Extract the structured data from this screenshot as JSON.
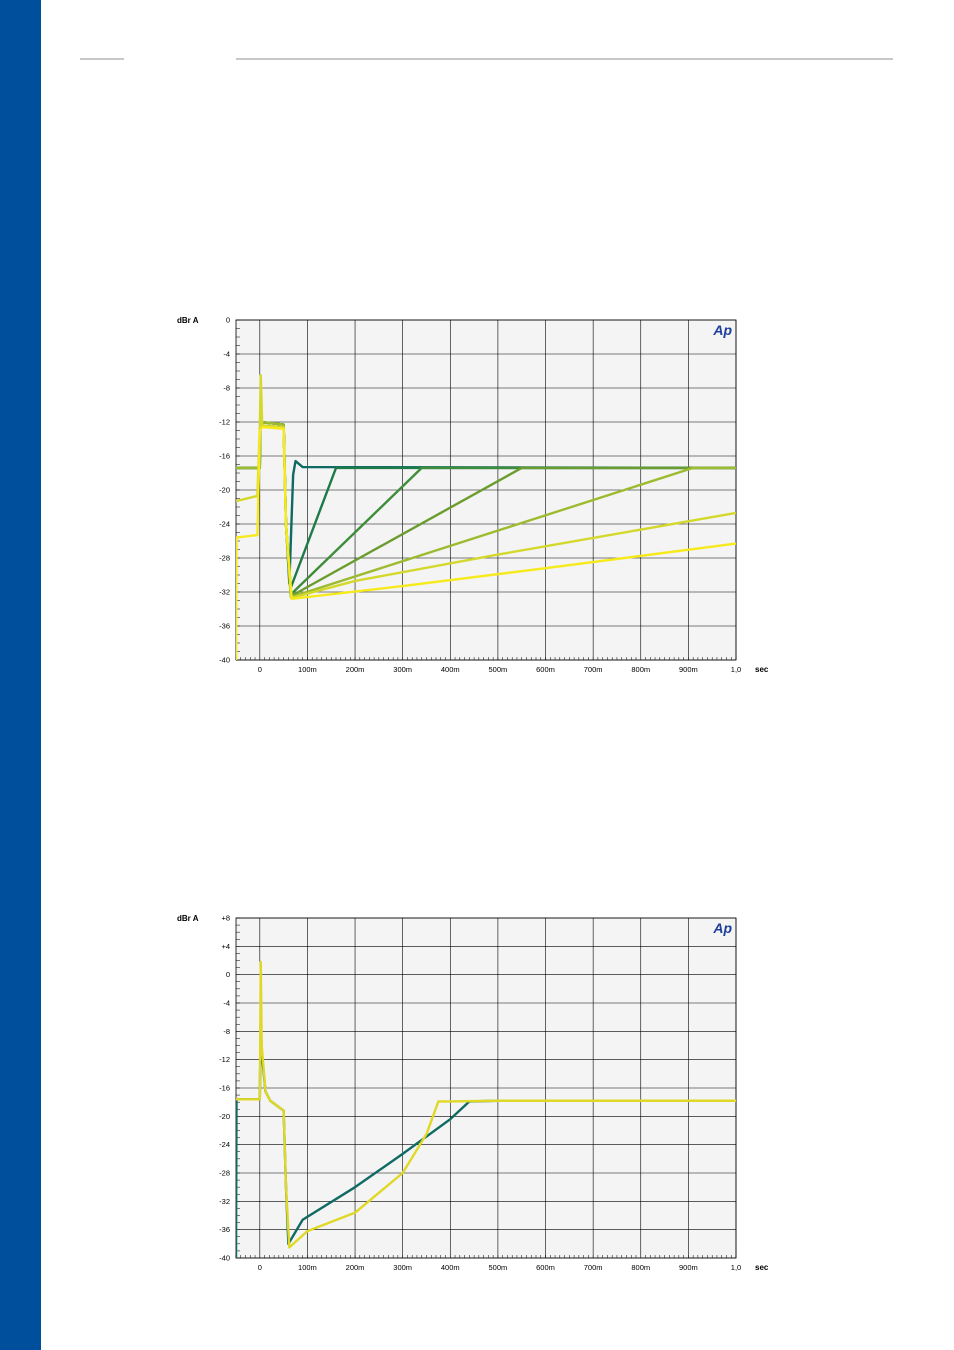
{
  "page": {
    "side_bar_color": "#004f9c",
    "rule_color": "#c8c8c8"
  },
  "chart_data": [
    {
      "type": "line",
      "ylabel": "dBr A",
      "xunit": "sec",
      "logo": "Ap",
      "xlim": [
        -0.05,
        1.0
      ],
      "ylim": [
        -40,
        0
      ],
      "grid": true,
      "xticks": [
        0,
        0.1,
        0.2,
        0.3,
        0.4,
        0.5,
        0.6,
        0.7,
        0.8,
        0.9,
        1.0
      ],
      "xtick_labels": [
        "0",
        "100m",
        "200m",
        "300m",
        "400m",
        "500m",
        "600m",
        "700m",
        "800m",
        "900m",
        "1,0"
      ],
      "yticks": [
        0,
        -4,
        -8,
        -12,
        -16,
        -20,
        -24,
        -28,
        -32,
        -36,
        -40
      ],
      "ytick_labels": [
        "0",
        "-4",
        "-8",
        "-12",
        "-16",
        "-20",
        "-24",
        "-28",
        "-32",
        "-36",
        "-40"
      ],
      "series": [
        {
          "color": "#0e6a62",
          "points": [
            [
              -0.05,
              -17.4
            ],
            [
              0,
              -17.4
            ],
            [
              0.001,
              -12
            ],
            [
              0.05,
              -12.3
            ],
            [
              0.055,
              -24
            ],
            [
              0.062,
              -31
            ],
            [
              0.07,
              -18.2
            ],
            [
              0.075,
              -16.6
            ],
            [
              0.09,
              -17.3
            ],
            [
              1.0,
              -17.4
            ]
          ]
        },
        {
          "color": "#1e7a48",
          "points": [
            [
              -0.05,
              -17.4
            ],
            [
              0,
              -17.4
            ],
            [
              0.001,
              -12
            ],
            [
              0.05,
              -12.3
            ],
            [
              0.055,
              -24
            ],
            [
              0.065,
              -31.5
            ],
            [
              0.16,
              -17.4
            ],
            [
              1.0,
              -17.4
            ]
          ]
        },
        {
          "color": "#3f8d3a",
          "points": [
            [
              -0.05,
              -17.4
            ],
            [
              0,
              -17.4
            ],
            [
              0.001,
              -12
            ],
            [
              0.05,
              -12.3
            ],
            [
              0.055,
              -24
            ],
            [
              0.065,
              -32.3
            ],
            [
              0.34,
              -17.4
            ],
            [
              1.0,
              -17.4
            ]
          ]
        },
        {
          "color": "#6b9c2f",
          "points": [
            [
              -0.05,
              -17.4
            ],
            [
              0,
              -17.4
            ],
            [
              0.001,
              -12
            ],
            [
              0.05,
              -12.3
            ],
            [
              0.055,
              -24
            ],
            [
              0.065,
              -32.5
            ],
            [
              0.55,
              -17.4
            ],
            [
              1.0,
              -17.4
            ]
          ]
        },
        {
          "color": "#9dbb2e",
          "points": [
            [
              -0.05,
              -17.4
            ],
            [
              0,
              -17.4
            ],
            [
              0.001,
              -12
            ],
            [
              0.05,
              -12.3
            ],
            [
              0.055,
              -24
            ],
            [
              0.065,
              -32.6
            ],
            [
              0.91,
              -17.4
            ],
            [
              1.0,
              -17.4
            ]
          ]
        },
        {
          "color": "#d4d82a",
          "points": [
            [
              -0.05,
              -21.3
            ],
            [
              -0.005,
              -20.7
            ],
            [
              0,
              -12.5
            ],
            [
              0.002,
              -6.5
            ],
            [
              0.005,
              -12.4
            ],
            [
              0.05,
              -12.6
            ],
            [
              0.055,
              -24
            ],
            [
              0.066,
              -32.7
            ],
            [
              0.2,
              -30.7
            ],
            [
              0.5,
              -27.6
            ],
            [
              1.0,
              -22.7
            ]
          ]
        },
        {
          "color": "#f6ea1c",
          "points": [
            [
              -0.05,
              -40
            ],
            [
              -0.049,
              -25.6
            ],
            [
              -0.005,
              -25.3
            ],
            [
              0,
              -13
            ],
            [
              0.005,
              -12.6
            ],
            [
              0.05,
              -12.8
            ],
            [
              0.055,
              -24
            ],
            [
              0.067,
              -32.8
            ],
            [
              0.3,
              -31.3
            ],
            [
              0.6,
              -29.2
            ],
            [
              1.0,
              -26.3
            ]
          ]
        }
      ]
    },
    {
      "type": "line",
      "ylabel": "dBr A",
      "xunit": "sec",
      "logo": "Ap",
      "xlim": [
        -0.05,
        1.0
      ],
      "ylim": [
        -40,
        8
      ],
      "grid": true,
      "xticks": [
        0,
        0.1,
        0.2,
        0.3,
        0.4,
        0.5,
        0.6,
        0.7,
        0.8,
        0.9,
        1.0
      ],
      "xtick_labels": [
        "0",
        "100m",
        "200m",
        "300m",
        "400m",
        "500m",
        "600m",
        "700m",
        "800m",
        "900m",
        "1,0"
      ],
      "yticks": [
        8,
        4,
        0,
        -4,
        -8,
        -12,
        -16,
        -20,
        -24,
        -28,
        -32,
        -36,
        -40
      ],
      "ytick_labels": [
        "+8",
        "+4",
        "0",
        "-4",
        "-8",
        "-12",
        "-16",
        "-20",
        "-24",
        "-28",
        "-32",
        "-36",
        "-40"
      ],
      "series": [
        {
          "color": "#0e6a62",
          "points": [
            [
              -0.05,
              -40
            ],
            [
              -0.049,
              -17.6
            ],
            [
              0,
              -17.6
            ],
            [
              0.002,
              -6
            ],
            [
              0.004,
              -11
            ],
            [
              0.012,
              -16.5
            ],
            [
              0.022,
              -17.8
            ],
            [
              0.05,
              -19.2
            ],
            [
              0.055,
              -30
            ],
            [
              0.06,
              -38
            ],
            [
              0.09,
              -34.6
            ],
            [
              0.2,
              -30
            ],
            [
              0.3,
              -25.3
            ],
            [
              0.4,
              -20.4
            ],
            [
              0.44,
              -17.9
            ],
            [
              0.5,
              -17.8
            ],
            [
              1.0,
              -17.8
            ]
          ]
        },
        {
          "color": "#e0d826",
          "points": [
            [
              -0.05,
              -17.6
            ],
            [
              0,
              -17.6
            ],
            [
              0.002,
              1.8
            ],
            [
              0.004,
              -10
            ],
            [
              0.012,
              -16.5
            ],
            [
              0.022,
              -17.8
            ],
            [
              0.05,
              -19.2
            ],
            [
              0.055,
              -30
            ],
            [
              0.062,
              -38.5
            ],
            [
              0.1,
              -36.2
            ],
            [
              0.2,
              -33.6
            ],
            [
              0.3,
              -28
            ],
            [
              0.35,
              -22.5
            ],
            [
              0.375,
              -17.9
            ],
            [
              0.4,
              -17.9
            ],
            [
              0.5,
              -17.8
            ],
            [
              1.0,
              -17.8
            ]
          ]
        }
      ]
    }
  ]
}
